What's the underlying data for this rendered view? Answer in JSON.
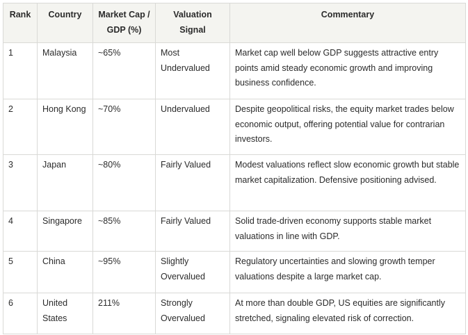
{
  "table": {
    "headers": {
      "rank": "Rank",
      "country": "Country",
      "market_cap": "Market Cap / GDP (%)",
      "signal": "Valuation Signal",
      "commentary": "Commentary"
    },
    "rows": [
      {
        "rank": "1",
        "country": "Malaysia",
        "market_cap": "~65%",
        "signal": "Most Undervalued",
        "commentary": "Market cap well below GDP suggests attractive entry points amid steady economic growth and improving business confidence."
      },
      {
        "rank": "2",
        "country": "Hong Kong",
        "market_cap": "~70%",
        "signal": "Undervalued",
        "commentary": "Despite geopolitical risks, the equity market trades below economic output, offering potential value for contrarian investors."
      },
      {
        "rank": "3",
        "country": "Japan",
        "market_cap": "~80%",
        "signal": "Fairly Valued",
        "commentary": "Modest valuations reflect slow economic growth but stable market capitalization. Defensive positioning advised."
      },
      {
        "rank": "4",
        "country": "Singapore",
        "market_cap": "~85%",
        "signal": "Fairly Valued",
        "commentary": "Solid trade-driven economy supports stable market valuations in line with GDP."
      },
      {
        "rank": "5",
        "country": "China",
        "market_cap": "~95%",
        "signal": "Slightly Overvalued",
        "commentary": "Regulatory uncertainties and slowing growth temper valuations despite a large market cap."
      },
      {
        "rank": "6",
        "country": "United States",
        "market_cap": "211%",
        "signal": "Strongly Overvalued",
        "commentary": "At more than double GDP, US equities are significantly stretched, signaling elevated risk of correction."
      }
    ]
  }
}
